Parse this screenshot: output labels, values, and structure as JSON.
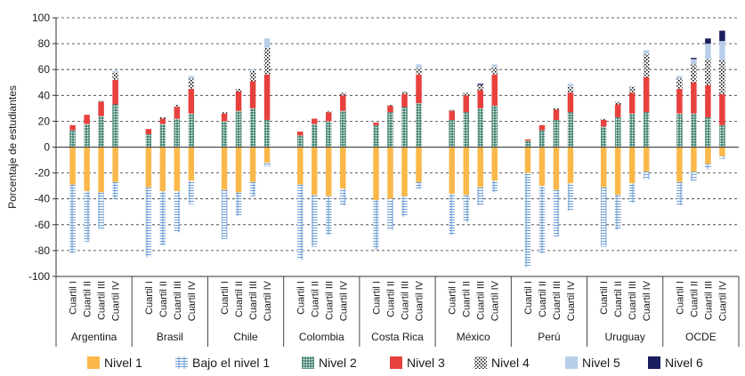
{
  "chart_data": {
    "type": "bar",
    "stacked": "diverging",
    "ylabel": "Porcentaje de estudiantes",
    "ylim": [
      -100,
      100
    ],
    "yticks": [
      -100,
      -80,
      -60,
      -40,
      -20,
      0,
      20,
      40,
      60,
      80,
      100
    ],
    "grid": true,
    "legend_position": "bottom",
    "countries": [
      "Argentina",
      "Brasil",
      "Chile",
      "Colombia",
      "Costa Rica",
      "México",
      "Perú",
      "Uruguay",
      "OCDE"
    ],
    "quartiles": [
      "Cuartil I",
      "Cuartil II",
      "Cuartil III",
      "Cuartil IV"
    ],
    "series": [
      {
        "name": "Nivel 1",
        "key": "n1",
        "color": "#fbb84a",
        "direction": "down"
      },
      {
        "name": "Bajo el nivel 1",
        "key": "b1",
        "color": "#6b9bd1",
        "direction": "down"
      },
      {
        "name": "Nivel 2",
        "key": "n2",
        "color": "#1f6b55",
        "direction": "up"
      },
      {
        "name": "Nivel 3",
        "key": "n3",
        "color": "#e8413d",
        "direction": "up"
      },
      {
        "name": "Nivel 4",
        "key": "n4",
        "color": "#111111",
        "direction": "up"
      },
      {
        "name": "Nivel 5",
        "key": "n5",
        "color": "#b9cfe9",
        "direction": "up"
      },
      {
        "name": "Nivel 6",
        "key": "n6",
        "color": "#1a1e5c",
        "direction": "up"
      }
    ],
    "values": {
      "Argentina": [
        {
          "n1": 29,
          "b1": 53,
          "n2": 13,
          "n3": 4,
          "n4": 0,
          "n5": 0,
          "n6": 0
        },
        {
          "n1": 34,
          "b1": 39,
          "n2": 18,
          "n3": 7,
          "n4": 0,
          "n5": 0,
          "n6": 0
        },
        {
          "n1": 35,
          "b1": 28,
          "n2": 24,
          "n3": 11,
          "n4": 1,
          "n5": 0,
          "n6": 0
        },
        {
          "n1": 27,
          "b1": 13,
          "n2": 33,
          "n3": 19,
          "n4": 6,
          "n5": 1,
          "n6": 0
        }
      ],
      "Brasil": [
        {
          "n1": 31,
          "b1": 54,
          "n2": 10,
          "n3": 4,
          "n4": 0,
          "n5": 0,
          "n6": 0
        },
        {
          "n1": 34,
          "b1": 42,
          "n2": 18,
          "n3": 4,
          "n4": 1,
          "n5": 0,
          "n6": 0
        },
        {
          "n1": 34,
          "b1": 32,
          "n2": 22,
          "n3": 9,
          "n4": 2,
          "n5": 0,
          "n6": 0
        },
        {
          "n1": 26,
          "b1": 18,
          "n2": 26,
          "n3": 19,
          "n4": 8,
          "n5": 2,
          "n6": 0
        }
      ],
      "Chile": [
        {
          "n1": 33,
          "b1": 38,
          "n2": 20,
          "n3": 6,
          "n4": 1,
          "n5": 0,
          "n6": 0
        },
        {
          "n1": 35,
          "b1": 18,
          "n2": 28,
          "n3": 15,
          "n4": 2,
          "n5": 0,
          "n6": 0
        },
        {
          "n1": 27,
          "b1": 11,
          "n2": 30,
          "n3": 21,
          "n4": 8,
          "n5": 1,
          "n6": 0
        },
        {
          "n1": 12,
          "b1": 3,
          "n2": 21,
          "n3": 35,
          "n4": 21,
          "n5": 7,
          "n6": 0
        }
      ],
      "Colombia": [
        {
          "n1": 29,
          "b1": 58,
          "n2": 9,
          "n3": 3,
          "n4": 0,
          "n5": 0,
          "n6": 0
        },
        {
          "n1": 37,
          "b1": 40,
          "n2": 18,
          "n3": 4,
          "n4": 0,
          "n5": 0,
          "n6": 0
        },
        {
          "n1": 38,
          "b1": 30,
          "n2": 20,
          "n3": 7,
          "n4": 1,
          "n5": 0,
          "n6": 0
        },
        {
          "n1": 32,
          "b1": 13,
          "n2": 28,
          "n3": 12,
          "n4": 2,
          "n5": 0,
          "n6": 0
        }
      ],
      "Costa Rica": [
        {
          "n1": 41,
          "b1": 38,
          "n2": 17,
          "n3": 2,
          "n4": 0,
          "n5": 0,
          "n6": 0
        },
        {
          "n1": 40,
          "b1": 24,
          "n2": 27,
          "n3": 5,
          "n4": 1,
          "n5": 0,
          "n6": 0
        },
        {
          "n1": 38,
          "b1": 16,
          "n2": 31,
          "n3": 10,
          "n4": 2,
          "n5": 0,
          "n6": 0
        },
        {
          "n1": 27,
          "b1": 5,
          "n2": 34,
          "n3": 22,
          "n4": 5,
          "n5": 3,
          "n6": 0
        }
      ],
      "México": [
        {
          "n1": 36,
          "b1": 32,
          "n2": 21,
          "n3": 7,
          "n4": 1,
          "n5": 0,
          "n6": 0
        },
        {
          "n1": 37,
          "b1": 21,
          "n2": 27,
          "n3": 13,
          "n4": 2,
          "n5": 0,
          "n6": 0
        },
        {
          "n1": 31,
          "b1": 14,
          "n2": 30,
          "n3": 14,
          "n4": 4,
          "n5": 0,
          "n6": 1
        },
        {
          "n1": 26,
          "b1": 9,
          "n2": 32,
          "n3": 24,
          "n4": 6,
          "n5": 2,
          "n6": 0
        }
      ],
      "Perú": [
        {
          "n1": 20,
          "b1": 73,
          "n2": 5,
          "n3": 1,
          "n4": 0,
          "n5": 0,
          "n6": 0
        },
        {
          "n1": 30,
          "b1": 52,
          "n2": 13,
          "n3": 4,
          "n4": 0,
          "n5": 0,
          "n6": 0
        },
        {
          "n1": 33,
          "b1": 36,
          "n2": 21,
          "n3": 8,
          "n4": 1,
          "n5": 0,
          "n6": 0
        },
        {
          "n1": 28,
          "b1": 21,
          "n2": 27,
          "n3": 15,
          "n4": 5,
          "n5": 2,
          "n6": 0
        }
      ],
      "Uruguay": [
        {
          "n1": 31,
          "b1": 46,
          "n2": 16,
          "n3": 5,
          "n4": 1,
          "n5": 0,
          "n6": 0
        },
        {
          "n1": 37,
          "b1": 27,
          "n2": 23,
          "n3": 10,
          "n4": 2,
          "n5": 0,
          "n6": 0
        },
        {
          "n1": 28,
          "b1": 15,
          "n2": 26,
          "n3": 16,
          "n4": 5,
          "n5": 0,
          "n6": 0
        },
        {
          "n1": 19,
          "b1": 6,
          "n2": 27,
          "n3": 27,
          "n4": 18,
          "n5": 3,
          "n6": 0
        }
      ],
      "OCDE": [
        {
          "n1": 27,
          "b1": 18,
          "n2": 26,
          "n3": 19,
          "n4": 8,
          "n5": 2,
          "n6": 0
        },
        {
          "n1": 19,
          "b1": 7,
          "n2": 26,
          "n3": 24,
          "n4": 14,
          "n5": 4,
          "n6": 1
        },
        {
          "n1": 13,
          "b1": 4,
          "n2": 23,
          "n3": 25,
          "n4": 20,
          "n5": 12,
          "n6": 4
        },
        {
          "n1": 7,
          "b1": 2,
          "n2": 17,
          "n3": 24,
          "n4": 26,
          "n5": 15,
          "n6": 8
        }
      ]
    }
  }
}
